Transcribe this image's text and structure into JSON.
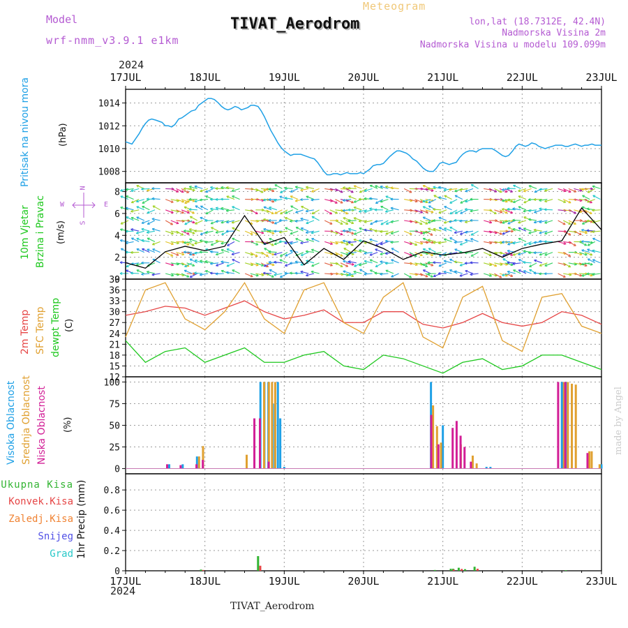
{
  "header": {
    "model_label": "Model",
    "model_name": "wrf-nmm_v3.9.1 e1km",
    "meteogram_label": "Meteogram",
    "station_title": "TIVAT_Aerodrom",
    "lonlat": "lon,lat (18.7312E, 42.4N)",
    "elevation": "Nadmorska Visina 2m",
    "model_elevation": "Nadmorska Visina u modelu 109.099m",
    "year": "2024",
    "watermark": "made by Angel"
  },
  "footer": {
    "station": "TIVAT_Aerodrom",
    "year": "2024"
  },
  "colors": {
    "pressure": "#1ea0e6",
    "temp2m": "#e64646",
    "sfc_temp": "#e0a030",
    "dewpoint": "#1ec81e",
    "high_cloud": "#1ea0e6",
    "mid_cloud": "#e0a030",
    "low_cloud": "#d21e96",
    "total_precip": "#32b432",
    "conv_precip": "#e64646",
    "frozen": "#f08232",
    "snow": "#5050e6",
    "hail": "#28c8c8",
    "label_purple": "#b45ad2",
    "title_gold": "#f0c878"
  },
  "chart_data": [
    {
      "type": "line",
      "panel": "pressure",
      "y_label_lines": [
        "Pritisak na nivou mora"
      ],
      "unit": "(hPa)",
      "x_ticks": [
        "17JUL",
        "18JUL",
        "19JUL",
        "20JUL",
        "21JUL",
        "22JUL",
        "23JUL"
      ],
      "ylim": [
        1007,
        1015.2
      ],
      "yticks": [
        1008,
        1010,
        1012,
        1014
      ],
      "grid": true,
      "series": [
        {
          "color_key": "pressure",
          "x": [
            0,
            0.04,
            0.08,
            0.12,
            0.17,
            0.21,
            0.25,
            0.29,
            0.33,
            0.38,
            0.42,
            0.46,
            0.5,
            0.54,
            0.58,
            0.62,
            0.67,
            0.71,
            0.75,
            0.79,
            0.83,
            0.88,
            0.92,
            0.96,
            1.0,
            1.04,
            1.08,
            1.12,
            1.17,
            1.21,
            1.25,
            1.29,
            1.33,
            1.38,
            1.42,
            1.46,
            1.5,
            1.54,
            1.58,
            1.62,
            1.67,
            1.71,
            1.75,
            1.79,
            1.83,
            1.88,
            1.92,
            1.96,
            2.0,
            2.04,
            2.08,
            2.12,
            2.17,
            2.21,
            2.25,
            2.29,
            2.33,
            2.38,
            2.42,
            2.46,
            2.5,
            2.54,
            2.58,
            2.62,
            2.67,
            2.71,
            2.75,
            2.79,
            2.83,
            2.88,
            2.92,
            2.96,
            3.0,
            3.04,
            3.08,
            3.12,
            3.17,
            3.21,
            3.25,
            3.29,
            3.33,
            3.38,
            3.42,
            3.46,
            3.5,
            3.54,
            3.58,
            3.62,
            3.67,
            3.71,
            3.75,
            3.79,
            3.83,
            3.88,
            3.92,
            3.96,
            4.0,
            4.04,
            4.08,
            4.12,
            4.17,
            4.21,
            4.25,
            4.29,
            4.33,
            4.38,
            4.42,
            4.46,
            4.5,
            4.54,
            4.58,
            4.62,
            4.67,
            4.71,
            4.75,
            4.79,
            4.83,
            4.88,
            4.92,
            4.96,
            5.0,
            5.04,
            5.08,
            5.12,
            5.17,
            5.21,
            5.25,
            5.29,
            5.33,
            5.38,
            5.42,
            5.46,
            5.5,
            5.54,
            5.58,
            5.62,
            5.67,
            5.71,
            5.75,
            5.79,
            5.83,
            5.88,
            5.92,
            5.96,
            6.0
          ],
          "values": [
            1010.6,
            1010.5,
            1010.4,
            1010.8,
            1011.3,
            1011.8,
            1012.2,
            1012.5,
            1012.6,
            1012.5,
            1012.4,
            1012.3,
            1012.0,
            1012.0,
            1011.9,
            1012.1,
            1012.6,
            1012.7,
            1012.9,
            1013.1,
            1013.3,
            1013.4,
            1013.8,
            1014.0,
            1014.2,
            1014.4,
            1014.4,
            1014.3,
            1014.0,
            1013.7,
            1013.5,
            1013.4,
            1013.5,
            1013.7,
            1013.6,
            1013.4,
            1013.5,
            1013.6,
            1013.8,
            1013.8,
            1013.7,
            1013.3,
            1012.8,
            1012.2,
            1011.6,
            1011.0,
            1010.5,
            1010.1,
            1009.8,
            1009.6,
            1009.4,
            1009.5,
            1009.5,
            1009.5,
            1009.4,
            1009.3,
            1009.2,
            1009.1,
            1008.8,
            1008.4,
            1008.0,
            1007.7,
            1007.7,
            1007.8,
            1007.8,
            1007.7,
            1007.8,
            1007.9,
            1007.8,
            1007.8,
            1007.8,
            1007.9,
            1007.8,
            1008.0,
            1008.2,
            1008.5,
            1008.6,
            1008.6,
            1008.7,
            1009.0,
            1009.3,
            1009.6,
            1009.8,
            1009.8,
            1009.7,
            1009.6,
            1009.4,
            1009.1,
            1008.9,
            1008.6,
            1008.3,
            1008.1,
            1008.0,
            1008.0,
            1008.3,
            1008.7,
            1008.8,
            1008.7,
            1008.6,
            1008.7,
            1008.8,
            1009.2,
            1009.5,
            1009.7,
            1009.8,
            1009.8,
            1009.7,
            1009.9,
            1010.0,
            1010.0,
            1010.0,
            1010.0,
            1009.8,
            1009.6,
            1009.4,
            1009.3,
            1009.4,
            1009.8,
            1010.2,
            1010.4,
            1010.3,
            1010.2,
            1010.3,
            1010.5,
            1010.4,
            1010.2,
            1010.1,
            1010.0,
            1010.1,
            1010.2,
            1010.3,
            1010.3,
            1010.3,
            1010.2,
            1010.2,
            1010.3,
            1010.4,
            1010.3,
            1010.2,
            1010.3,
            1010.3,
            1010.4,
            1010.3,
            1010.3,
            1010.3
          ]
        }
      ]
    },
    {
      "type": "line",
      "panel": "wind",
      "y_label_lines": [
        "10m Vjetar",
        "Brzina i Pravac"
      ],
      "unit": "(m/s)",
      "compass": {
        "w": "W",
        "e": "E",
        "n": "N",
        "s": "S"
      },
      "ylim": [
        0,
        8.8
      ],
      "yticks": [
        0,
        2,
        4,
        6,
        8
      ],
      "grid": true,
      "series": [
        {
          "name": "wind speed",
          "color": "#000000",
          "x": [
            0,
            0.25,
            0.5,
            0.75,
            1.0,
            1.25,
            1.5,
            1.75,
            2.0,
            2.25,
            2.5,
            2.75,
            3.0,
            3.25,
            3.5,
            3.75,
            4.0,
            4.25,
            4.5,
            4.75,
            5.0,
            5.25,
            5.5,
            5.75,
            6.0
          ],
          "values": [
            1.5,
            1.0,
            2.5,
            3.0,
            2.6,
            3.0,
            5.8,
            3.2,
            3.8,
            1.3,
            2.8,
            1.8,
            3.5,
            2.8,
            1.8,
            2.5,
            2.2,
            2.4,
            2.8,
            2.0,
            2.8,
            3.2,
            3.5,
            6.5,
            4.5
          ]
        }
      ]
    },
    {
      "type": "line",
      "panel": "temperature",
      "y_label_lines": [
        "2m Temp",
        "SFC Temp",
        "dewpt Temp"
      ],
      "unit": "(C)",
      "ylim": [
        12,
        39
      ],
      "yticks": [
        12,
        15,
        18,
        21,
        24,
        27,
        30,
        33,
        36,
        39
      ],
      "grid": true,
      "series": [
        {
          "name": "2m Temp",
          "color_key": "temp2m",
          "x": [
            0,
            0.25,
            0.5,
            0.75,
            1.0,
            1.25,
            1.5,
            1.75,
            2.0,
            2.25,
            2.5,
            2.75,
            3.0,
            3.25,
            3.5,
            3.75,
            4.0,
            4.25,
            4.5,
            4.75,
            5.0,
            5.25,
            5.5,
            5.75,
            6.0
          ],
          "values": [
            29,
            30,
            31.5,
            31,
            29,
            31,
            33,
            30,
            28,
            29,
            30.5,
            27,
            27,
            30,
            30,
            26.5,
            25.5,
            27,
            29.5,
            27,
            26,
            27,
            30,
            29,
            26.5
          ]
        },
        {
          "name": "SFC Temp",
          "color_key": "sfc_temp",
          "x": [
            0,
            0.25,
            0.5,
            0.75,
            1.0,
            1.25,
            1.5,
            1.75,
            2.0,
            2.25,
            2.5,
            2.75,
            3.0,
            3.25,
            3.5,
            3.75,
            4.0,
            4.25,
            4.5,
            4.75,
            5.0,
            5.25,
            5.5,
            5.75,
            6.0
          ],
          "values": [
            23,
            36,
            38,
            28,
            25,
            30,
            38,
            28,
            24,
            36,
            38,
            27,
            24,
            34,
            38,
            23,
            20,
            34,
            37,
            22,
            19,
            34,
            35,
            26,
            24
          ]
        },
        {
          "name": "dewpt Temp",
          "color_key": "dewpoint",
          "x": [
            0,
            0.25,
            0.5,
            0.75,
            1.0,
            1.25,
            1.5,
            1.75,
            2.0,
            2.25,
            2.5,
            2.75,
            3.0,
            3.25,
            3.5,
            3.75,
            4.0,
            4.25,
            4.5,
            4.75,
            5.0,
            5.25,
            5.5,
            5.75,
            6.0
          ],
          "values": [
            22,
            16,
            19,
            20,
            16,
            18,
            20,
            16,
            16,
            18,
            19,
            15,
            14,
            18,
            17,
            15,
            13,
            16,
            17,
            14,
            15,
            18,
            18,
            16,
            14
          ]
        }
      ]
    },
    {
      "type": "bar",
      "panel": "cloud",
      "y_label_lines": [
        "Visoka Oblacnost",
        "Srednja Oblacnost",
        "Niska Oblacnost"
      ],
      "unit": "(%)",
      "ylim": [
        -6,
        106
      ],
      "yticks": [
        0,
        25,
        50,
        75,
        100
      ],
      "grid": true,
      "series": [
        {
          "name": "Visoka Oblacnost",
          "color_key": "high_cloud",
          "x": [
            0.55,
            0.72,
            0.9,
            1.7,
            1.75,
            1.8,
            1.85,
            1.88,
            1.92,
            1.95,
            2.0,
            3.85,
            4.0,
            4.55,
            4.6,
            5.5,
            5.52,
            5.55,
            6.0
          ],
          "values": [
            5,
            5,
            14,
            100,
            100,
            100,
            75,
            75,
            100,
            58,
            2,
            100,
            50,
            2,
            2,
            100,
            100,
            100,
            5
          ]
        },
        {
          "name": "Srednja Oblacnost",
          "color_key": "mid_cloud",
          "x": [
            0.9,
            0.95,
            1.5,
            1.72,
            1.78,
            1.82,
            1.86,
            3.85,
            3.9,
            3.95,
            4.2,
            4.35,
            4.4,
            5.5,
            5.55,
            5.6,
            5.65,
            5.82,
            5.85,
            5.95
          ],
          "values": [
            14,
            26,
            16,
            100,
            100,
            100,
            100,
            73,
            49,
            30,
            28,
            15,
            6,
            100,
            100,
            98,
            97,
            20,
            20,
            5
          ]
        },
        {
          "name": "Niska Oblacnost",
          "color_key": "low_cloud",
          "x": [
            0.55,
            0.72,
            0.92,
            1.0,
            1.65,
            1.72,
            1.83,
            3.88,
            3.97,
            4.15,
            4.2,
            4.25,
            4.3,
            4.38,
            5.48,
            5.57,
            5.85
          ],
          "values": [
            5,
            4,
            5,
            10,
            58,
            58,
            8,
            62,
            28,
            47,
            55,
            38,
            25,
            8,
            100,
            100,
            18
          ]
        }
      ]
    },
    {
      "type": "bar",
      "panel": "precip",
      "y_label_lines": [
        "1hr Precip (mm)"
      ],
      "legend": [
        "Ukupna Kisa",
        "Konvek.Kisa",
        "Zaledj.Kisa",
        "Snijeg",
        "Grad"
      ],
      "ylim": [
        0,
        0.96
      ],
      "yticks": [
        "0",
        "0.2",
        "0.4",
        "0.6",
        "0.8"
      ],
      "x_ticks": [
        "17JUL",
        "18JUL",
        "19JUL",
        "20JUL",
        "21JUL",
        "22JUL",
        "23JUL"
      ],
      "grid": true,
      "series": [
        {
          "name": "Ukupna Kisa",
          "color_key": "total_precip",
          "x": [
            0.95,
            1.67,
            3.9,
            4.1,
            4.13,
            4.2,
            4.28,
            4.4,
            5.55
          ],
          "values": [
            0.012,
            0.145,
            0.008,
            0.02,
            0.02,
            0.03,
            0.016,
            0.04,
            0.006
          ]
        },
        {
          "name": "Konvek.Kisa",
          "color_key": "conv_precip",
          "x": [
            0.96,
            1.68,
            4.12,
            4.22,
            4.42
          ],
          "values": [
            0.008,
            0.05,
            0.012,
            0.018,
            0.02
          ]
        }
      ]
    }
  ]
}
